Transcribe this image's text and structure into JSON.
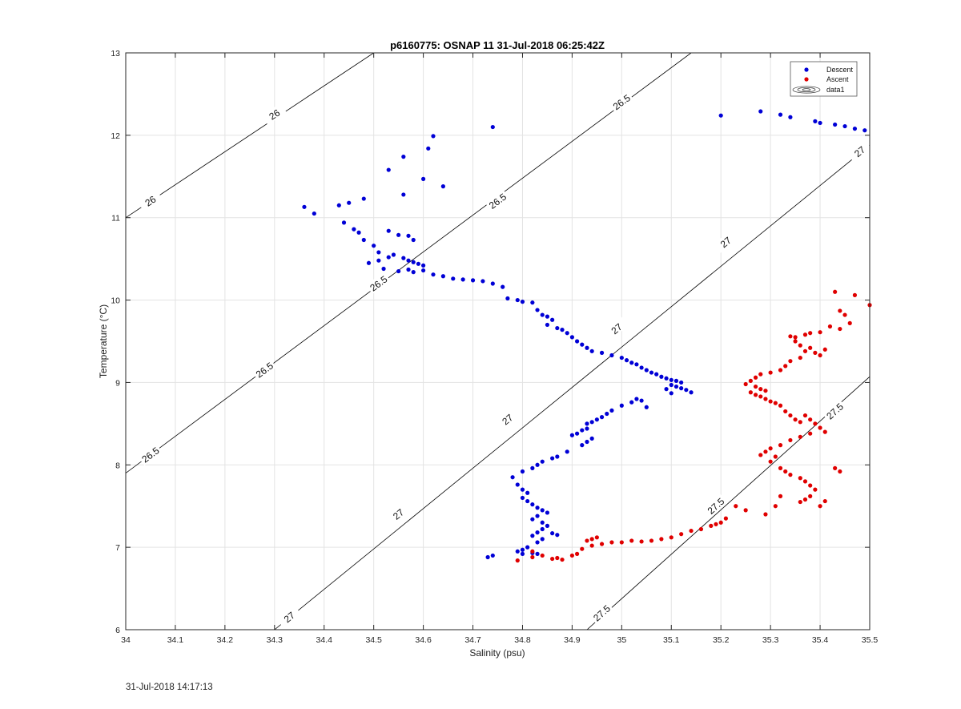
{
  "colors": {
    "descent": "#0000d6",
    "ascent": "#e00000",
    "contour": "#000000",
    "grid": "#e3e3e3"
  },
  "timestamp": "31-Jul-2018 14:17:13",
  "chart_data": {
    "type": "scatter",
    "title": "p6160775: OSNAP 11 31-Jul-2018 06:25:42Z",
    "xlabel": "Salinity (psu)",
    "ylabel": "Temperature (°C)",
    "xlim": [
      34,
      35.5
    ],
    "ylim": [
      6,
      13
    ],
    "xticks": [
      "34",
      "34.1",
      "34.2",
      "34.3",
      "34.4",
      "34.5",
      "34.6",
      "34.7",
      "34.8",
      "34.9",
      "35",
      "35.1",
      "35.2",
      "35.3",
      "35.4",
      "35.5"
    ],
    "yticks": [
      "6",
      "7",
      "8",
      "9",
      "10",
      "11",
      "12",
      "13"
    ],
    "grid": true,
    "legend_position": "top-right",
    "legend": [
      "Descent",
      "Ascent",
      "data1"
    ],
    "contours": [
      {
        "level": "26",
        "points": [
          [
            34.0,
            11.0
          ],
          [
            34.5,
            13.0
          ]
        ],
        "labels": [
          [
            34.05,
            11.2
          ],
          [
            34.3,
            12.25
          ]
        ]
      },
      {
        "level": "26.5",
        "points": [
          [
            34.0,
            7.9
          ],
          [
            35.14,
            13.0
          ]
        ],
        "labels": [
          [
            34.05,
            8.12
          ],
          [
            34.28,
            9.15
          ],
          [
            34.51,
            10.2
          ],
          [
            34.75,
            11.2
          ],
          [
            35.0,
            12.4
          ]
        ]
      },
      {
        "level": "27",
        "points": [
          [
            34.3,
            6.0
          ],
          [
            35.5,
            11.88
          ]
        ],
        "labels": [
          [
            34.33,
            6.15
          ],
          [
            34.55,
            7.4
          ],
          [
            34.77,
            8.55
          ],
          [
            34.99,
            9.65
          ],
          [
            35.21,
            10.7
          ],
          [
            35.48,
            11.8
          ]
        ]
      },
      {
        "level": "27.5",
        "points": [
          [
            34.93,
            6.0
          ],
          [
            35.5,
            9.07
          ]
        ],
        "labels": [
          [
            34.96,
            6.2
          ],
          [
            35.19,
            7.5
          ],
          [
            35.43,
            8.65
          ]
        ]
      }
    ],
    "series": [
      {
        "name": "Descent",
        "points": [
          [
            34.36,
            11.13
          ],
          [
            34.38,
            11.05
          ],
          [
            34.43,
            11.15
          ],
          [
            34.45,
            11.18
          ],
          [
            34.48,
            11.23
          ],
          [
            34.53,
            11.58
          ],
          [
            34.56,
            11.74
          ],
          [
            34.56,
            11.28
          ],
          [
            34.6,
            11.47
          ],
          [
            34.61,
            11.84
          ],
          [
            34.62,
            11.99
          ],
          [
            34.64,
            11.38
          ],
          [
            34.74,
            12.1
          ],
          [
            35.2,
            12.24
          ],
          [
            35.28,
            12.29
          ],
          [
            35.32,
            12.25
          ],
          [
            35.34,
            12.22
          ],
          [
            35.39,
            12.17
          ],
          [
            35.4,
            12.15
          ],
          [
            35.43,
            12.13
          ],
          [
            35.45,
            12.11
          ],
          [
            35.47,
            12.08
          ],
          [
            35.49,
            12.06
          ],
          [
            34.44,
            10.94
          ],
          [
            34.46,
            10.86
          ],
          [
            34.47,
            10.82
          ],
          [
            34.48,
            10.73
          ],
          [
            34.5,
            10.66
          ],
          [
            34.51,
            10.58
          ],
          [
            34.53,
            10.84
          ],
          [
            34.55,
            10.79
          ],
          [
            34.57,
            10.78
          ],
          [
            34.58,
            10.73
          ],
          [
            34.49,
            10.45
          ],
          [
            34.51,
            10.48
          ],
          [
            34.53,
            10.52
          ],
          [
            34.54,
            10.55
          ],
          [
            34.56,
            10.51
          ],
          [
            34.57,
            10.48
          ],
          [
            34.58,
            10.46
          ],
          [
            34.59,
            10.44
          ],
          [
            34.6,
            10.42
          ],
          [
            34.52,
            10.38
          ],
          [
            34.55,
            10.35
          ],
          [
            34.57,
            10.37
          ],
          [
            34.58,
            10.34
          ],
          [
            34.6,
            10.36
          ],
          [
            34.62,
            10.31
          ],
          [
            34.64,
            10.29
          ],
          [
            34.66,
            10.26
          ],
          [
            34.68,
            10.25
          ],
          [
            34.7,
            10.24
          ],
          [
            34.72,
            10.23
          ],
          [
            34.74,
            10.2
          ],
          [
            34.76,
            10.16
          ],
          [
            34.77,
            10.02
          ],
          [
            34.79,
            10.0
          ],
          [
            34.8,
            9.98
          ],
          [
            34.82,
            9.97
          ],
          [
            34.83,
            9.88
          ],
          [
            34.84,
            9.82
          ],
          [
            34.85,
            9.8
          ],
          [
            34.86,
            9.76
          ],
          [
            34.85,
            9.7
          ],
          [
            34.87,
            9.66
          ],
          [
            34.88,
            9.64
          ],
          [
            34.89,
            9.6
          ],
          [
            34.9,
            9.55
          ],
          [
            34.91,
            9.5
          ],
          [
            34.92,
            9.46
          ],
          [
            34.93,
            9.42
          ],
          [
            34.94,
            9.38
          ],
          [
            34.96,
            9.36
          ],
          [
            34.98,
            9.33
          ],
          [
            35.0,
            9.3
          ],
          [
            35.01,
            9.27
          ],
          [
            35.02,
            9.24
          ],
          [
            35.03,
            9.22
          ],
          [
            35.04,
            9.18
          ],
          [
            35.05,
            9.15
          ],
          [
            35.06,
            9.12
          ],
          [
            35.07,
            9.1
          ],
          [
            35.08,
            9.07
          ],
          [
            35.09,
            9.05
          ],
          [
            35.1,
            9.03
          ],
          [
            35.11,
            9.02
          ],
          [
            35.12,
            9.0
          ],
          [
            35.1,
            8.97
          ],
          [
            35.11,
            8.95
          ],
          [
            35.12,
            8.93
          ],
          [
            35.13,
            8.91
          ],
          [
            35.14,
            8.88
          ],
          [
            35.1,
            8.87
          ],
          [
            35.09,
            8.92
          ],
          [
            35.05,
            8.7
          ],
          [
            35.04,
            8.78
          ],
          [
            35.03,
            8.8
          ],
          [
            35.02,
            8.76
          ],
          [
            35.0,
            8.72
          ],
          [
            34.98,
            8.66
          ],
          [
            34.97,
            8.62
          ],
          [
            34.96,
            8.58
          ],
          [
            34.95,
            8.55
          ],
          [
            34.94,
            8.52
          ],
          [
            34.93,
            8.5
          ],
          [
            34.93,
            8.44
          ],
          [
            34.92,
            8.42
          ],
          [
            34.91,
            8.38
          ],
          [
            34.9,
            8.36
          ],
          [
            34.94,
            8.32
          ],
          [
            34.93,
            8.28
          ],
          [
            34.92,
            8.24
          ],
          [
            34.89,
            8.16
          ],
          [
            34.87,
            8.1
          ],
          [
            34.86,
            8.08
          ],
          [
            34.84,
            8.04
          ],
          [
            34.83,
            8.0
          ],
          [
            34.82,
            7.96
          ],
          [
            34.8,
            7.92
          ],
          [
            34.78,
            7.85
          ],
          [
            34.79,
            7.76
          ],
          [
            34.8,
            7.7
          ],
          [
            34.81,
            7.66
          ],
          [
            34.8,
            7.6
          ],
          [
            34.81,
            7.56
          ],
          [
            34.82,
            7.52
          ],
          [
            34.83,
            7.48
          ],
          [
            34.84,
            7.45
          ],
          [
            34.85,
            7.42
          ],
          [
            34.83,
            7.38
          ],
          [
            34.82,
            7.34
          ],
          [
            34.84,
            7.3
          ],
          [
            34.85,
            7.26
          ],
          [
            34.84,
            7.22
          ],
          [
            34.83,
            7.18
          ],
          [
            34.82,
            7.14
          ],
          [
            34.86,
            7.17
          ],
          [
            34.87,
            7.15
          ],
          [
            34.84,
            7.1
          ],
          [
            34.83,
            7.06
          ],
          [
            34.81,
            7.0
          ],
          [
            34.8,
            6.97
          ],
          [
            34.79,
            6.95
          ],
          [
            34.8,
            6.92
          ],
          [
            34.82,
            6.93
          ],
          [
            34.83,
            6.92
          ],
          [
            34.73,
            6.88
          ],
          [
            34.74,
            6.9
          ]
        ]
      },
      {
        "name": "Ascent",
        "points": [
          [
            35.43,
            10.1
          ],
          [
            35.47,
            10.06
          ],
          [
            35.5,
            9.94
          ],
          [
            35.44,
            9.87
          ],
          [
            35.45,
            9.82
          ],
          [
            35.46,
            9.72
          ],
          [
            35.44,
            9.65
          ],
          [
            35.42,
            9.68
          ],
          [
            35.4,
            9.61
          ],
          [
            35.38,
            9.6
          ],
          [
            35.37,
            9.58
          ],
          [
            35.35,
            9.55
          ],
          [
            35.34,
            9.56
          ],
          [
            35.35,
            9.5
          ],
          [
            35.36,
            9.45
          ],
          [
            35.37,
            9.38
          ],
          [
            35.38,
            9.42
          ],
          [
            35.39,
            9.36
          ],
          [
            35.4,
            9.33
          ],
          [
            35.41,
            9.4
          ],
          [
            35.36,
            9.3
          ],
          [
            35.34,
            9.26
          ],
          [
            35.33,
            9.2
          ],
          [
            35.32,
            9.15
          ],
          [
            35.3,
            9.12
          ],
          [
            35.28,
            9.1
          ],
          [
            35.27,
            9.06
          ],
          [
            35.26,
            9.02
          ],
          [
            35.25,
            8.98
          ],
          [
            35.27,
            8.95
          ],
          [
            35.28,
            8.92
          ],
          [
            35.29,
            8.9
          ],
          [
            35.26,
            8.88
          ],
          [
            35.27,
            8.85
          ],
          [
            35.28,
            8.83
          ],
          [
            35.29,
            8.8
          ],
          [
            35.3,
            8.77
          ],
          [
            35.31,
            8.75
          ],
          [
            35.32,
            8.72
          ],
          [
            35.33,
            8.65
          ],
          [
            35.34,
            8.6
          ],
          [
            35.35,
            8.55
          ],
          [
            35.36,
            8.52
          ],
          [
            35.37,
            8.6
          ],
          [
            35.38,
            8.55
          ],
          [
            35.39,
            8.5
          ],
          [
            35.4,
            8.45
          ],
          [
            35.41,
            8.4
          ],
          [
            35.38,
            8.38
          ],
          [
            35.36,
            8.34
          ],
          [
            35.34,
            8.3
          ],
          [
            35.32,
            8.24
          ],
          [
            35.3,
            8.2
          ],
          [
            35.29,
            8.16
          ],
          [
            35.28,
            8.12
          ],
          [
            35.31,
            8.1
          ],
          [
            35.3,
            8.04
          ],
          [
            35.32,
            7.96
          ],
          [
            35.33,
            7.92
          ],
          [
            35.34,
            7.88
          ],
          [
            35.36,
            7.84
          ],
          [
            35.37,
            7.8
          ],
          [
            35.38,
            7.75
          ],
          [
            35.39,
            7.7
          ],
          [
            35.38,
            7.62
          ],
          [
            35.37,
            7.58
          ],
          [
            35.36,
            7.55
          ],
          [
            35.4,
            7.5
          ],
          [
            35.41,
            7.56
          ],
          [
            35.43,
            7.96
          ],
          [
            35.44,
            7.92
          ],
          [
            35.32,
            7.62
          ],
          [
            35.31,
            7.5
          ],
          [
            35.29,
            7.4
          ],
          [
            35.25,
            7.45
          ],
          [
            35.23,
            7.5
          ],
          [
            35.21,
            7.35
          ],
          [
            35.2,
            7.3
          ],
          [
            35.19,
            7.28
          ],
          [
            35.18,
            7.26
          ],
          [
            35.16,
            7.22
          ],
          [
            35.14,
            7.2
          ],
          [
            35.12,
            7.16
          ],
          [
            35.1,
            7.12
          ],
          [
            35.08,
            7.1
          ],
          [
            35.06,
            7.08
          ],
          [
            35.04,
            7.07
          ],
          [
            35.02,
            7.08
          ],
          [
            35.0,
            7.06
          ],
          [
            34.98,
            7.06
          ],
          [
            34.96,
            7.04
          ],
          [
            34.94,
            7.02
          ],
          [
            34.93,
            7.08
          ],
          [
            34.92,
            6.98
          ],
          [
            34.91,
            6.92
          ],
          [
            34.9,
            6.9
          ],
          [
            34.88,
            6.85
          ],
          [
            34.86,
            6.86
          ],
          [
            34.84,
            6.9
          ],
          [
            34.82,
            6.88
          ],
          [
            34.79,
            6.84
          ],
          [
            34.82,
            6.95
          ],
          [
            34.87,
            6.87
          ],
          [
            34.94,
            7.1
          ],
          [
            34.95,
            7.12
          ]
        ]
      }
    ]
  }
}
